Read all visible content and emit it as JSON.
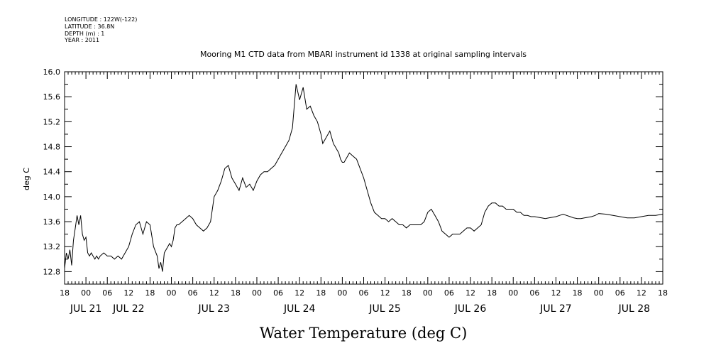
{
  "header": {
    "meta_lines": [
      "LONGITUDE : 122W(-122)",
      "LATITUDE : 36.8N",
      "DEPTH (m) : 1",
      "YEAR : 2011"
    ],
    "title": "Mooring M1 CTD data from MBARI instrument id 1338 at original sampling intervals"
  },
  "chart_data": {
    "type": "line",
    "title": "Mooring M1 CTD data from MBARI instrument id 1338 at original sampling intervals",
    "xlabel": "Water Temperature (deg C)",
    "ylabel": "deg C",
    "ylim": [
      12.6,
      16.0
    ],
    "yticks": [
      "12.8",
      "13.2",
      "13.6",
      "14.0",
      "14.4",
      "14.8",
      "15.2",
      "15.6",
      "16.0"
    ],
    "x_unit": "hours since JUL 20 18:00",
    "xlim": [
      0,
      168
    ],
    "xticks": [
      "18",
      "00",
      "06",
      "12",
      "18",
      "00",
      "06",
      "12",
      "18",
      "00",
      "06",
      "12",
      "18",
      "00",
      "06",
      "12",
      "18",
      "00",
      "06",
      "12",
      "18",
      "00",
      "06",
      "12",
      "18",
      "00",
      "06",
      "12",
      "18"
    ],
    "day_labels": [
      "JUL 21",
      "JUL 22",
      "JUL 23",
      "JUL 24",
      "JUL 25",
      "JUL 26",
      "JUL 27",
      "JUL 28"
    ],
    "day_label_hours": [
      6,
      18,
      42,
      66,
      90,
      114,
      138,
      160
    ],
    "grid": false,
    "series": [
      {
        "name": "",
        "x": [
          0,
          0.5,
          1,
          1.5,
          2,
          2.5,
          3,
          3.5,
          4,
          4.5,
          5,
          5.5,
          6,
          6.5,
          7,
          7.5,
          8,
          8.5,
          9,
          9.5,
          10,
          11,
          12,
          13,
          14,
          15,
          16,
          17,
          18,
          19,
          20,
          21,
          22,
          23,
          24,
          25,
          26,
          26.5,
          27,
          27.5,
          28,
          28.5,
          29,
          29.5,
          30,
          30.5,
          31,
          31.5,
          32,
          33,
          34,
          35,
          36,
          37,
          38,
          39,
          40,
          41,
          42,
          43,
          44,
          45,
          46,
          47,
          48,
          49,
          50,
          51,
          52,
          53,
          54,
          55,
          56,
          57,
          58,
          59,
          60,
          61,
          62,
          63,
          64,
          65,
          66,
          67,
          68,
          69,
          70,
          71,
          72,
          72.5,
          73,
          73.5,
          74,
          74.5,
          75,
          75.5,
          76,
          76.5,
          77,
          77.5,
          78,
          78.5,
          79,
          79.5,
          80,
          81,
          82,
          83,
          84,
          85,
          86,
          87,
          88,
          89,
          90,
          91,
          92,
          93,
          94,
          95,
          96,
          97,
          98,
          99,
          100,
          101,
          102,
          103,
          104,
          105,
          106,
          107,
          108,
          109,
          110,
          111,
          112,
          113,
          114,
          115,
          116,
          117,
          118,
          119,
          120,
          121,
          122,
          123,
          124,
          125,
          126,
          127,
          128,
          129,
          130,
          131,
          132,
          133,
          134,
          135,
          136,
          137,
          138,
          139,
          140,
          141,
          142,
          143,
          144,
          145,
          146,
          147,
          148,
          149,
          150,
          152,
          154,
          156,
          158,
          160,
          162,
          164,
          166,
          168
        ],
        "values": [
          12.85,
          13.1,
          13.0,
          13.15,
          12.9,
          13.3,
          13.5,
          13.7,
          13.55,
          13.7,
          13.4,
          13.3,
          13.35,
          13.1,
          13.05,
          13.1,
          13.05,
          13.0,
          13.05,
          13.0,
          13.05,
          13.1,
          13.05,
          13.05,
          13.0,
          13.05,
          13.0,
          13.1,
          13.2,
          13.4,
          13.55,
          13.6,
          13.4,
          13.6,
          13.55,
          13.2,
          13.05,
          12.85,
          12.95,
          12.8,
          13.1,
          13.15,
          13.2,
          13.25,
          13.2,
          13.3,
          13.5,
          13.55,
          13.55,
          13.6,
          13.65,
          13.7,
          13.65,
          13.55,
          13.5,
          13.45,
          13.5,
          13.6,
          14.0,
          14.1,
          14.25,
          14.45,
          14.5,
          14.3,
          14.2,
          14.1,
          14.3,
          14.15,
          14.2,
          14.1,
          14.25,
          14.35,
          14.4,
          14.4,
          14.45,
          14.5,
          14.6,
          14.7,
          14.8,
          14.9,
          15.1,
          15.8,
          15.55,
          15.75,
          15.4,
          15.45,
          15.3,
          15.2,
          15.0,
          14.85,
          14.9,
          14.95,
          15.0,
          15.05,
          14.95,
          14.85,
          14.8,
          14.75,
          14.7,
          14.6,
          14.55,
          14.55,
          14.6,
          14.65,
          14.7,
          14.65,
          14.6,
          14.45,
          14.3,
          14.1,
          13.9,
          13.75,
          13.7,
          13.65,
          13.65,
          13.6,
          13.65,
          13.6,
          13.55,
          13.55,
          13.5,
          13.55,
          13.55,
          13.55,
          13.55,
          13.6,
          13.75,
          13.8,
          13.7,
          13.6,
          13.45,
          13.4,
          13.35,
          13.4,
          13.4,
          13.4,
          13.45,
          13.5,
          13.5,
          13.45,
          13.5,
          13.55,
          13.75,
          13.85,
          13.9,
          13.9,
          13.85,
          13.85,
          13.8,
          13.8,
          13.8,
          13.75,
          13.75,
          13.7,
          13.7,
          13.68,
          13.68,
          13.67,
          13.66,
          13.65,
          13.66,
          13.67,
          13.68,
          13.7,
          13.72,
          13.7,
          13.68,
          13.66,
          13.65,
          13.65,
          13.66,
          13.67,
          13.68,
          13.7,
          13.73,
          13.72,
          13.7,
          13.68,
          13.66,
          13.66,
          13.68,
          13.7,
          13.7,
          13.72
        ]
      }
    ]
  }
}
